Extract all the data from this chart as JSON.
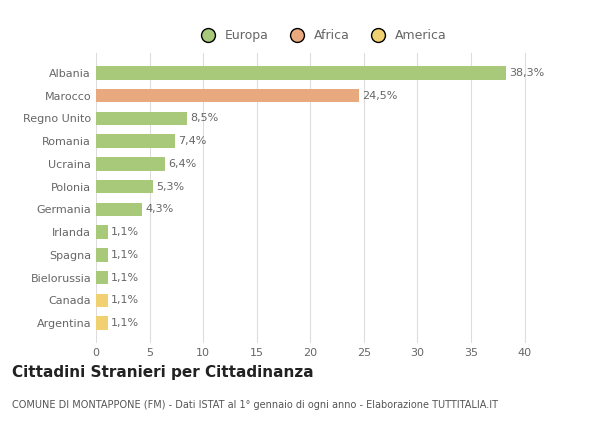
{
  "categories": [
    "Albania",
    "Marocco",
    "Regno Unito",
    "Romania",
    "Ucraina",
    "Polonia",
    "Germania",
    "Irlanda",
    "Spagna",
    "Bielorussia",
    "Canada",
    "Argentina"
  ],
  "values": [
    38.3,
    24.5,
    8.5,
    7.4,
    6.4,
    5.3,
    4.3,
    1.1,
    1.1,
    1.1,
    1.1,
    1.1
  ],
  "labels": [
    "38,3%",
    "24,5%",
    "8,5%",
    "7,4%",
    "6,4%",
    "5,3%",
    "4,3%",
    "1,1%",
    "1,1%",
    "1,1%",
    "1,1%",
    "1,1%"
  ],
  "continents": [
    "Europa",
    "Africa",
    "Europa",
    "Europa",
    "Europa",
    "Europa",
    "Europa",
    "Europa",
    "Europa",
    "Europa",
    "America",
    "America"
  ],
  "colors": {
    "Europa": "#a8c87a",
    "Africa": "#e8a97e",
    "America": "#f0d070"
  },
  "xlim": [
    0,
    42
  ],
  "xticks": [
    0,
    5,
    10,
    15,
    20,
    25,
    30,
    35,
    40
  ],
  "title": "Cittadini Stranieri per Cittadinanza",
  "subtitle": "COMUNE DI MONTAPPONE (FM) - Dati ISTAT al 1° gennaio di ogni anno - Elaborazione TUTTITALIA.IT",
  "background_color": "#ffffff",
  "grid_color": "#dddddd",
  "bar_height": 0.6,
  "label_fontsize": 8,
  "tick_fontsize": 8,
  "title_fontsize": 11,
  "subtitle_fontsize": 7
}
